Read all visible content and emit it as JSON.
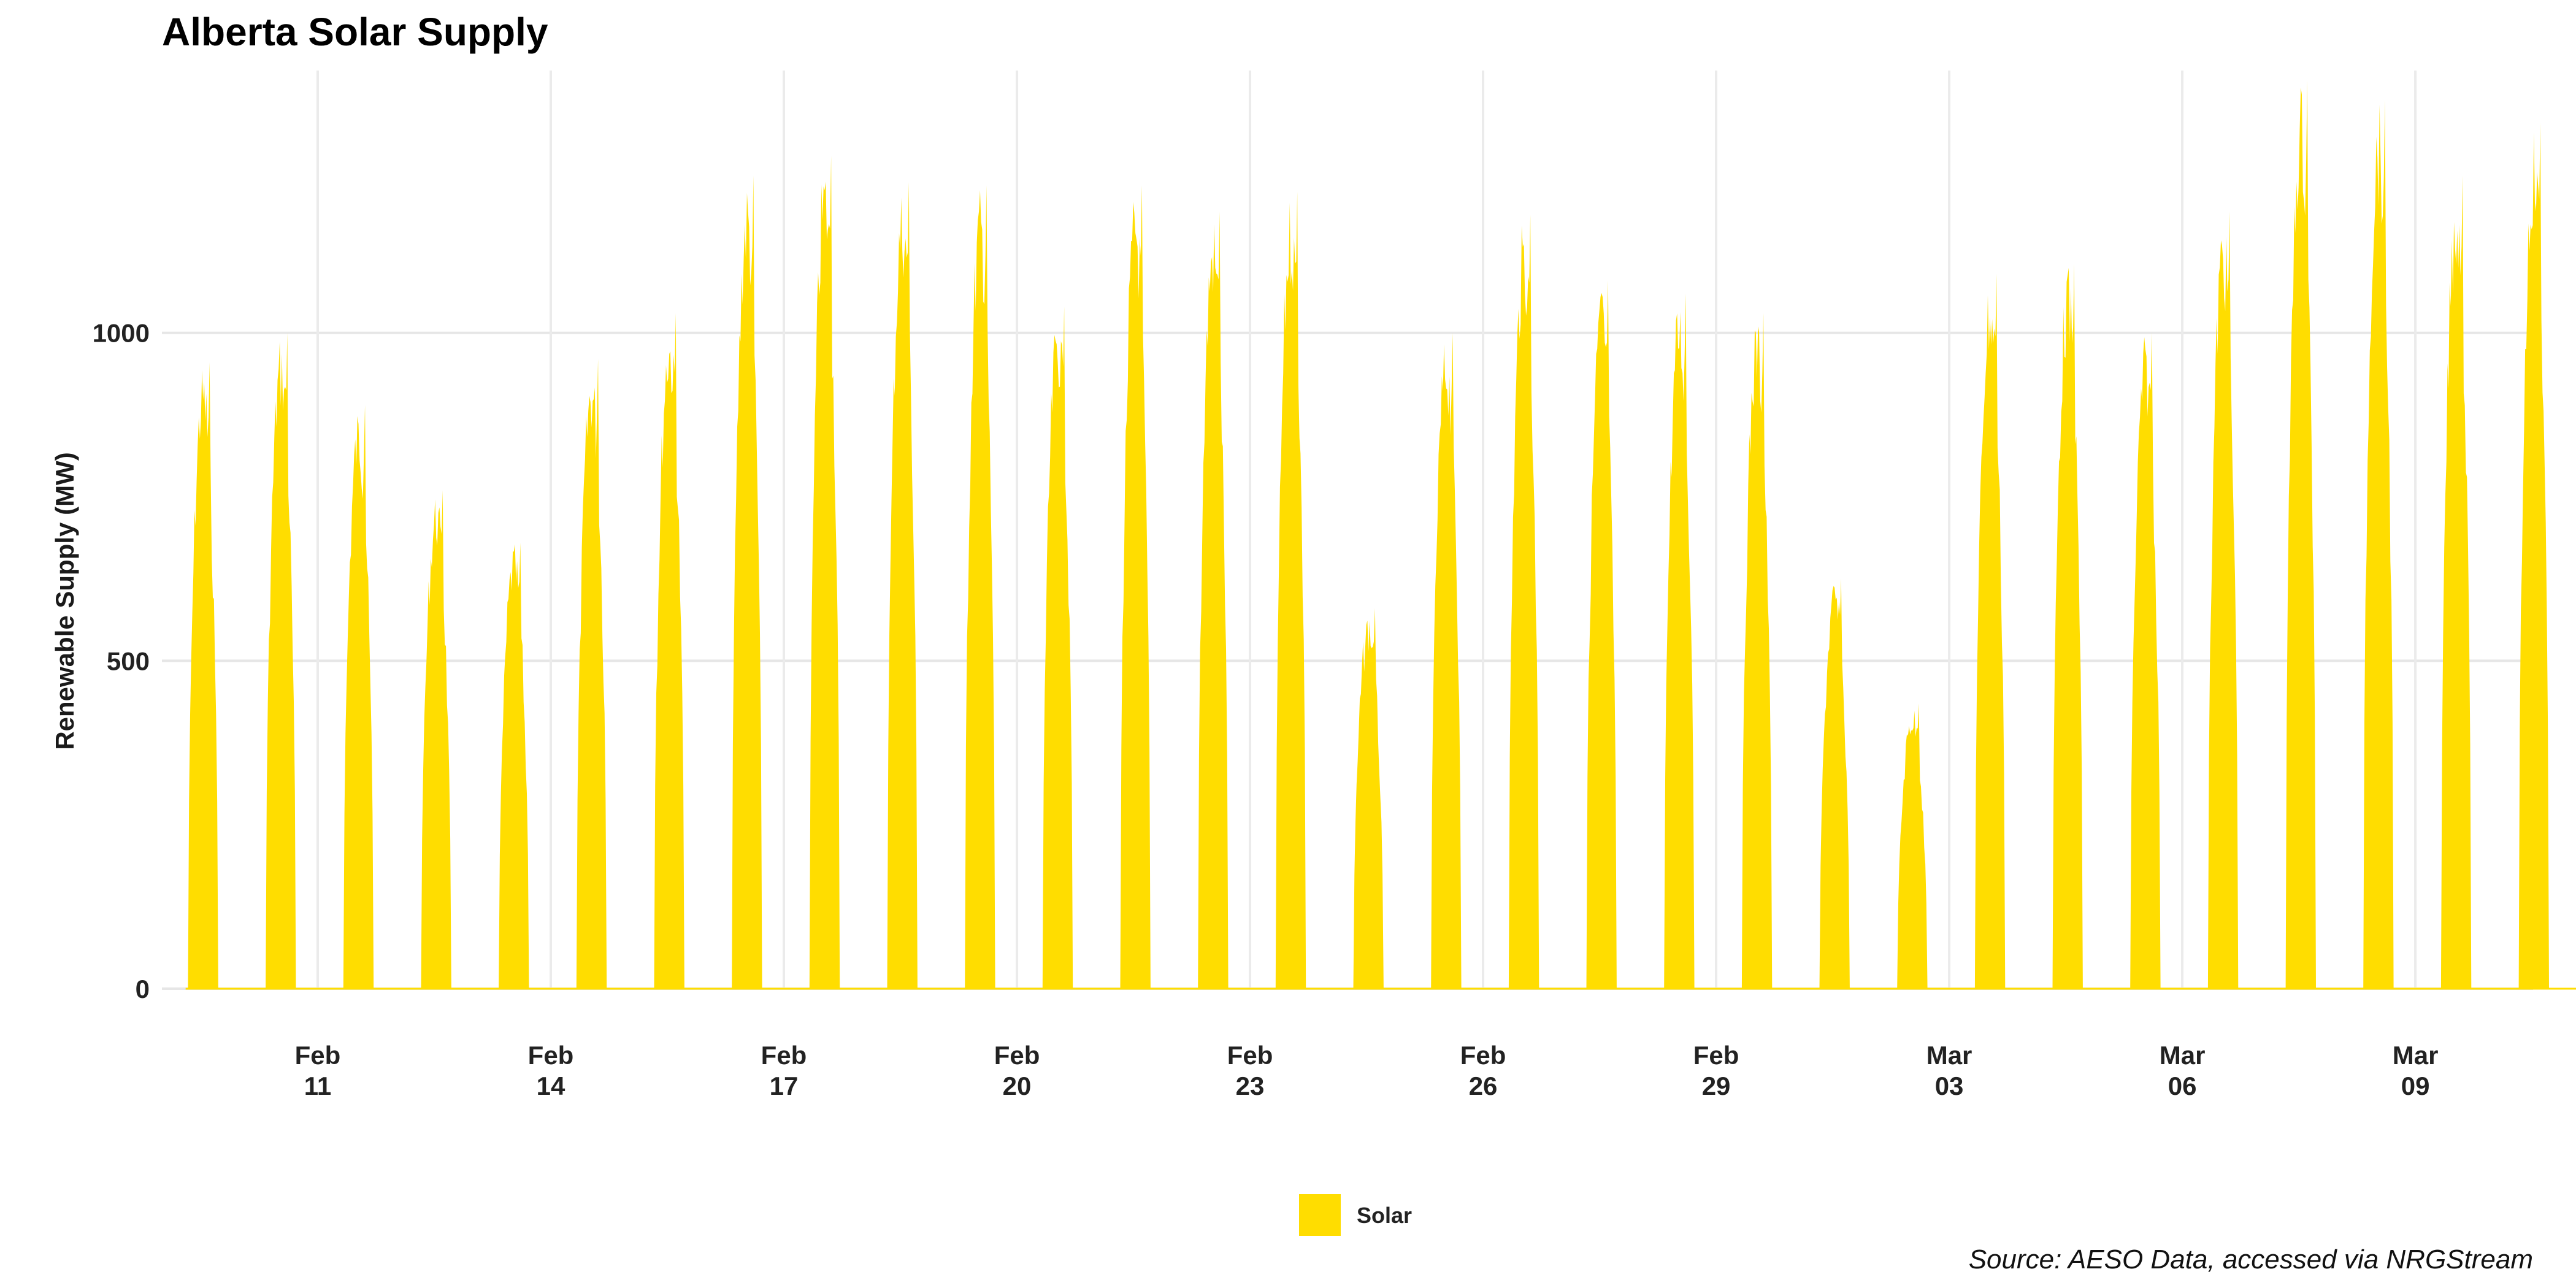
{
  "chart_data": {
    "type": "area",
    "title": "Alberta Solar Supply",
    "xlabel": "",
    "ylabel": "Renewable Supply (MW)",
    "caption": "Source: AESO Data, accessed via NRGStream",
    "x_range": [
      "2024-02-09",
      "2024-03-11"
    ],
    "ylim": [
      0,
      1400
    ],
    "y_ticks": [
      0,
      500,
      1000
    ],
    "x_ticks": [
      {
        "date": "2024-02-11",
        "label_top": "Feb",
        "label_bottom": "11"
      },
      {
        "date": "2024-02-14",
        "label_top": "Feb",
        "label_bottom": "14"
      },
      {
        "date": "2024-02-17",
        "label_top": "Feb",
        "label_bottom": "17"
      },
      {
        "date": "2024-02-20",
        "label_top": "Feb",
        "label_bottom": "20"
      },
      {
        "date": "2024-02-23",
        "label_top": "Feb",
        "label_bottom": "23"
      },
      {
        "date": "2024-02-26",
        "label_top": "Feb",
        "label_bottom": "26"
      },
      {
        "date": "2024-02-29",
        "label_top": "Feb",
        "label_bottom": "29"
      },
      {
        "date": "2024-03-03",
        "label_top": "Mar",
        "label_bottom": "03"
      },
      {
        "date": "2024-03-06",
        "label_top": "Mar",
        "label_bottom": "06"
      },
      {
        "date": "2024-03-09",
        "label_top": "Mar",
        "label_bottom": "09"
      }
    ],
    "grid": true,
    "legend_position": "bottom",
    "series": [
      {
        "name": "Solar",
        "color": "#FFDD00",
        "daily_peaks": [
          {
            "date": "2024-02-09",
            "peak": 955
          },
          {
            "date": "2024-02-10",
            "peak": 1000
          },
          {
            "date": "2024-02-11",
            "peak": 890
          },
          {
            "date": "2024-02-12",
            "peak": 760
          },
          {
            "date": "2024-02-13",
            "peak": 680
          },
          {
            "date": "2024-02-14",
            "peak": 960
          },
          {
            "date": "2024-02-15",
            "peak": 1030
          },
          {
            "date": "2024-02-16",
            "peak": 1240
          },
          {
            "date": "2024-02-17",
            "peak": 1270
          },
          {
            "date": "2024-02-18",
            "peak": 1230
          },
          {
            "date": "2024-02-19",
            "peak": 1225
          },
          {
            "date": "2024-02-20",
            "peak": 1040
          },
          {
            "date": "2024-02-21",
            "peak": 1225
          },
          {
            "date": "2024-02-22",
            "peak": 1185
          },
          {
            "date": "2024-02-23",
            "peak": 1215
          },
          {
            "date": "2024-02-24",
            "peak": 580
          },
          {
            "date": "2024-02-25",
            "peak": 1000
          },
          {
            "date": "2024-02-26",
            "peak": 1180
          },
          {
            "date": "2024-02-27",
            "peak": 1080
          },
          {
            "date": "2024-02-28",
            "peak": 1060
          },
          {
            "date": "2024-02-29",
            "peak": 1030
          },
          {
            "date": "2024-03-01",
            "peak": 625
          },
          {
            "date": "2024-03-02",
            "peak": 435
          },
          {
            "date": "2024-03-03",
            "peak": 1090
          },
          {
            "date": "2024-03-04",
            "peak": 1105
          },
          {
            "date": "2024-03-05",
            "peak": 1000
          },
          {
            "date": "2024-03-06",
            "peak": 1185
          },
          {
            "date": "2024-03-07",
            "peak": 1385
          },
          {
            "date": "2024-03-08",
            "peak": 1355
          },
          {
            "date": "2024-03-09",
            "peak": 1240
          },
          {
            "date": "2024-03-10",
            "peak": 1320
          }
        ]
      }
    ]
  }
}
